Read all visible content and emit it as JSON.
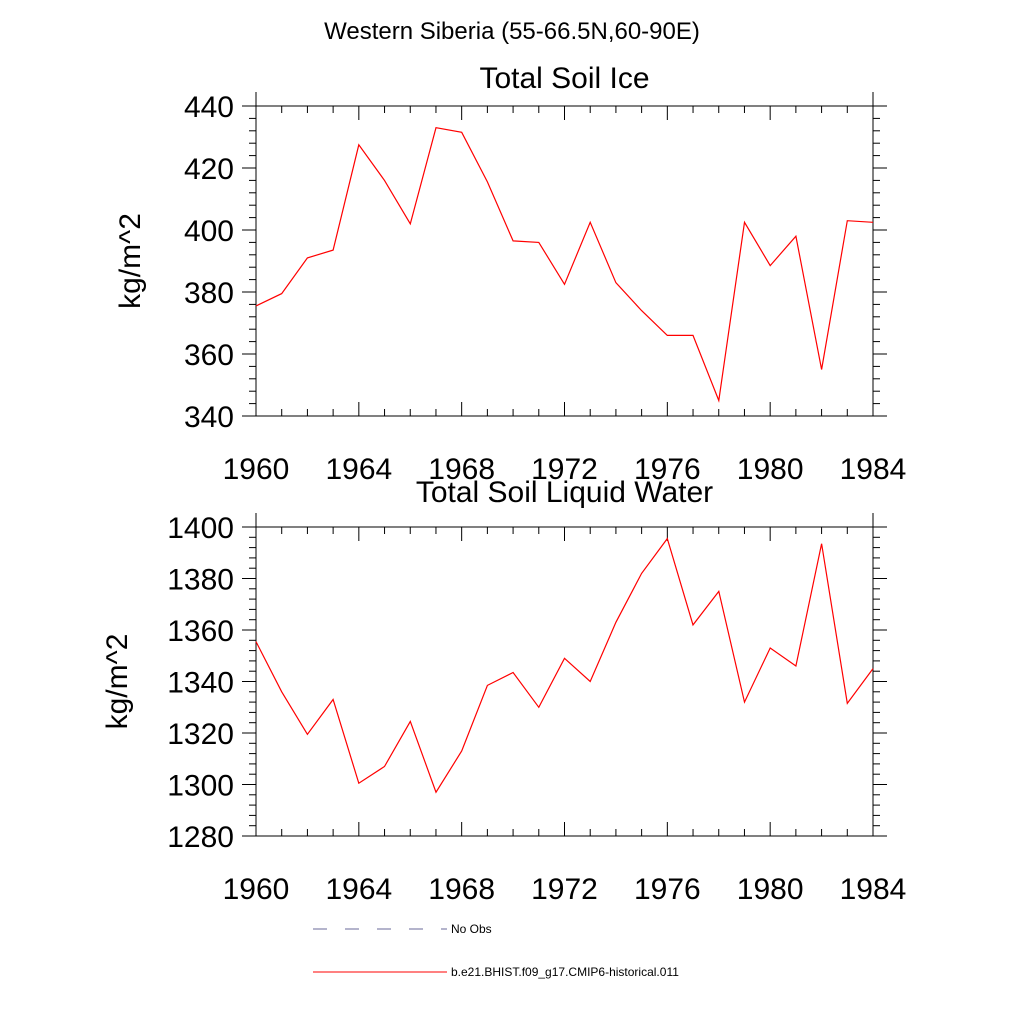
{
  "figure": {
    "supertitle": "Western Siberia (55-66.5N,60-90E)"
  },
  "chart_data": [
    {
      "type": "line",
      "title": "Total Soil Ice",
      "xlabel": "",
      "ylabel": "kg/m^2",
      "xlim": [
        1960,
        1984
      ],
      "ylim": [
        340,
        440
      ],
      "xticks": [
        1960,
        1964,
        1968,
        1972,
        1976,
        1980,
        1984
      ],
      "yticks": [
        340,
        360,
        380,
        400,
        420,
        440
      ],
      "grid": false,
      "series": [
        {
          "name": "b.e21.BHIST.f09_g17.CMIP6-historical.011",
          "color": "#ff0000",
          "x": [
            1960,
            1961,
            1962,
            1963,
            1964,
            1965,
            1966,
            1967,
            1968,
            1969,
            1970,
            1971,
            1972,
            1973,
            1974,
            1975,
            1976,
            1977,
            1978,
            1979,
            1980,
            1981,
            1982,
            1983,
            1984
          ],
          "y": [
            375.5,
            379.5,
            391,
            393.5,
            427.5,
            416,
            402,
            433,
            431.5,
            415.5,
            396.5,
            396,
            382.5,
            402.5,
            383,
            374,
            366,
            366,
            345,
            402.5,
            388.5,
            398,
            355,
            403,
            402.5
          ]
        }
      ]
    },
    {
      "type": "line",
      "title": "Total Soil Liquid Water",
      "xlabel": "",
      "ylabel": "kg/m^2",
      "xlim": [
        1960,
        1984
      ],
      "ylim": [
        1280,
        1400
      ],
      "xticks": [
        1960,
        1964,
        1968,
        1972,
        1976,
        1980,
        1984
      ],
      "yticks": [
        1280,
        1300,
        1320,
        1340,
        1360,
        1380,
        1400
      ],
      "grid": false,
      "series": [
        {
          "name": "b.e21.BHIST.f09_g17.CMIP6-historical.011",
          "color": "#ff0000",
          "x": [
            1960,
            1961,
            1962,
            1963,
            1964,
            1965,
            1966,
            1967,
            1968,
            1969,
            1970,
            1971,
            1972,
            1973,
            1974,
            1975,
            1976,
            1977,
            1978,
            1979,
            1980,
            1981,
            1982,
            1983,
            1984
          ],
          "y": [
            1355.5,
            1336,
            1319.5,
            1333,
            1300.5,
            1307,
            1324.5,
            1297,
            1313,
            1338.5,
            1343.5,
            1330,
            1349,
            1340,
            1363,
            1382,
            1395.5,
            1362,
            1375,
            1332,
            1353,
            1346,
            1393.5,
            1331.5,
            1345
          ]
        }
      ]
    }
  ],
  "legend": {
    "placement": "bottom",
    "entries": [
      {
        "label": "No Obs",
        "color": "#6a6a9a",
        "style": "dashed"
      },
      {
        "label": "b.e21.BHIST.f09_g17.CMIP6-historical.011",
        "color": "#ff0000",
        "style": "solid"
      }
    ]
  }
}
